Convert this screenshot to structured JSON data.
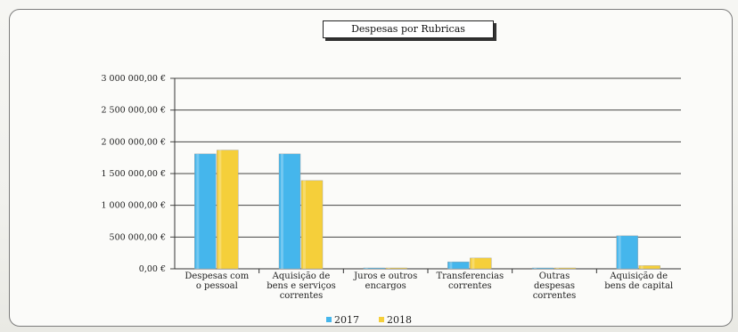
{
  "chart_data": {
    "type": "bar",
    "title": "Despesas por Rubricas",
    "categories": [
      [
        "Despesas com",
        "o pessoal"
      ],
      [
        "Aquisição de",
        "bens e serviços",
        "correntes"
      ],
      [
        "Juros e outros",
        "encargos"
      ],
      [
        "Transferencias",
        "correntes"
      ],
      [
        "Outras",
        "despesas",
        "correntes"
      ],
      [
        "Aquisição de",
        "bens de capital"
      ]
    ],
    "series": [
      {
        "name": "2017",
        "color": "#45b6ec",
        "values": [
          1810000,
          1810000,
          5000,
          110000,
          4000,
          520000
        ]
      },
      {
        "name": "2018",
        "color": "#f5cf3a",
        "values": [
          1870000,
          1390000,
          4000,
          170000,
          4000,
          50000
        ]
      }
    ],
    "ylim": [
      0,
      3000000
    ],
    "yticks": [
      0,
      500000,
      1000000,
      1500000,
      2000000,
      2500000,
      3000000
    ],
    "ytick_labels": [
      "0,00 €",
      "500 000,00 €",
      "1 000 000,00 €",
      "1 500 000,00 €",
      "2 000 000,00 €",
      "2 500 000,00 €",
      "3 000 000,00 €"
    ],
    "grid": true,
    "legend_position": "bottom"
  }
}
